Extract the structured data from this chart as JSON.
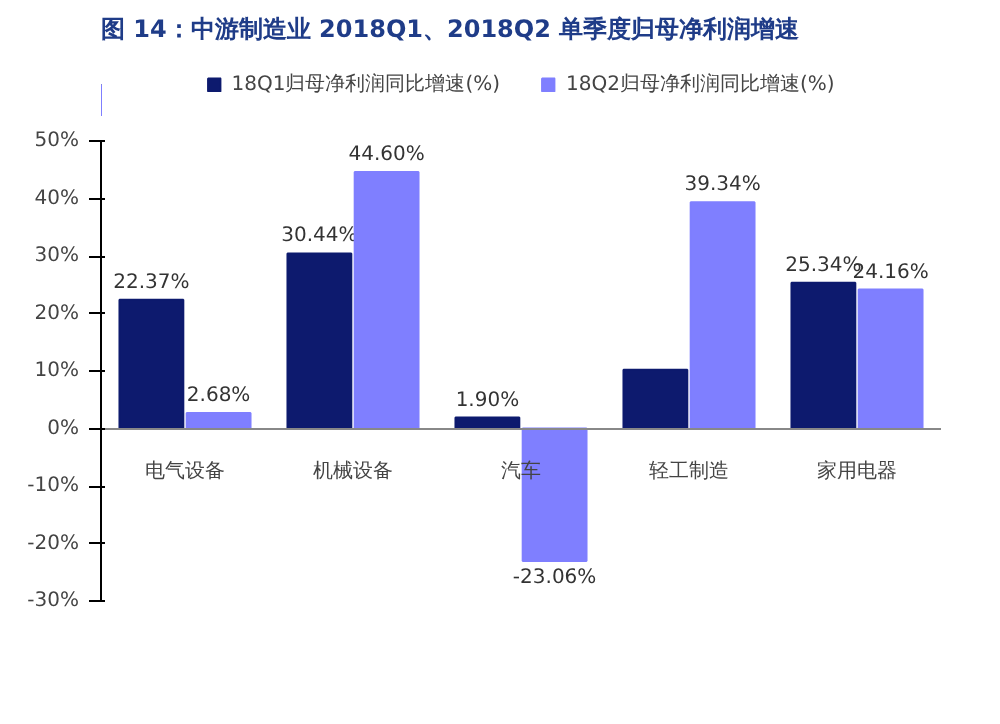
{
  "chart_data": {
    "type": "bar",
    "title": "图 14：中游制造业 2018Q1、2018Q2 单季度归母净利润增速",
    "categories": [
      "电气设备",
      "机械设备",
      "汽车",
      "轻工制造",
      "家用电器"
    ],
    "series": [
      {
        "name": "18Q1归母净利润同比增速(%)",
        "color": "#0d1a6e",
        "values": [
          22.37,
          30.44,
          1.9,
          10.2,
          25.34
        ],
        "value_labels": [
          "22.37%",
          "30.44%",
          "1.90%",
          null,
          "25.34%"
        ]
      },
      {
        "name": "18Q2归母净利润同比增速(%)",
        "color": "#7f7fff",
        "values": [
          2.68,
          44.6,
          -23.06,
          39.34,
          24.16
        ],
        "value_labels": [
          "2.68%",
          "44.60%",
          "-23.06%",
          "39.34%",
          "24.16%"
        ]
      }
    ],
    "ylim": [
      -30,
      50
    ],
    "yticks": [
      {
        "value": -30,
        "label": "-30%"
      },
      {
        "value": -20,
        "label": "-20%"
      },
      {
        "value": -10,
        "label": "-10%"
      },
      {
        "value": 0,
        "label": "0%"
      },
      {
        "value": 10,
        "label": "10%"
      },
      {
        "value": 20,
        "label": "20%"
      },
      {
        "value": 30,
        "label": "30%"
      },
      {
        "value": 40,
        "label": "40%"
      },
      {
        "value": 50,
        "label": "50%"
      }
    ],
    "grid": false,
    "legend": "top"
  }
}
